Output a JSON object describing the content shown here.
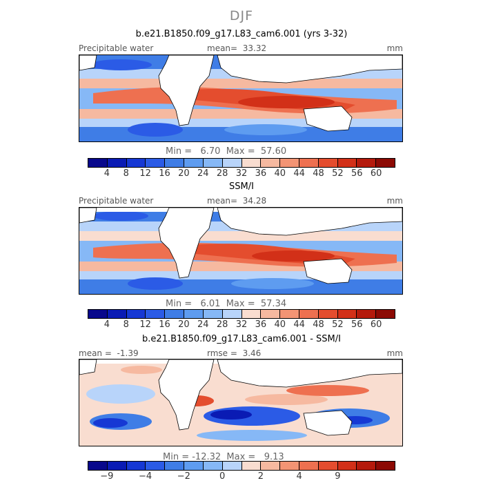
{
  "title": "DJF",
  "panels": [
    {
      "title": "b.e21.B1850.f09_g17.L83_cam6.001 (yrs 3-32)",
      "variable": "Precipitable water",
      "mean_label": "mean=",
      "mean_value": "33.32",
      "units": "mm",
      "min_label": "Min =",
      "min_value": "6.70",
      "max_label": "Max =",
      "max_value": "57.60",
      "map": "model"
    },
    {
      "title": "SSM/I",
      "variable": "Precipitable water",
      "mean_label": "mean=",
      "mean_value": "34.28",
      "units": "mm",
      "min_label": "Min =",
      "min_value": "6.01",
      "max_label": "Max =",
      "max_value": "57.34",
      "map": "obs"
    },
    {
      "title": "b.e21.B1850.f09_g17.L83_cam6.001 - SSM/I",
      "mean_label": "mean =",
      "mean_value": "-1.39",
      "rmse_label": "rmse =",
      "rmse_value": "3.46",
      "units": "mm",
      "min_label": "Min =",
      "min_value": "-12.32",
      "max_label": "Max =",
      "max_value": "9.13",
      "map": "diff"
    }
  ],
  "colorbar_field": {
    "colors": [
      "#08088c",
      "#0a1bb4",
      "#1638d4",
      "#2b5be6",
      "#3f7de6",
      "#5e9cf0",
      "#86b8f6",
      "#b8d4fa",
      "#f9ddd0",
      "#f6b9a0",
      "#f39474",
      "#ee7050",
      "#e44d2e",
      "#d23018",
      "#b41a0c",
      "#8c0a04"
    ],
    "labels": [
      "4",
      "8",
      "12",
      "16",
      "20",
      "24",
      "28",
      "32",
      "36",
      "40",
      "44",
      "48",
      "52",
      "56",
      "60"
    ]
  },
  "colorbar_diff": {
    "colors": [
      "#08088c",
      "#0a1bb4",
      "#1638d4",
      "#2b5be6",
      "#3f7de6",
      "#5e9cf0",
      "#86b8f6",
      "#b8d4fa",
      "#f9ddd0",
      "#f6b9a0",
      "#f39474",
      "#ee7050",
      "#e44d2e",
      "#d23018",
      "#b41a0c",
      "#8c0a04"
    ],
    "labels": [
      "-9",
      "-4",
      "-2",
      "0",
      "2",
      "4",
      "9"
    ],
    "label_boundaries": [
      1,
      3,
      5,
      7,
      9,
      11,
      13
    ]
  }
}
